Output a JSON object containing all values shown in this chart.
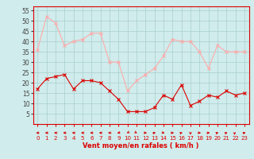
{
  "hours": [
    0,
    1,
    2,
    3,
    4,
    5,
    6,
    7,
    8,
    9,
    10,
    11,
    12,
    13,
    14,
    15,
    16,
    17,
    18,
    19,
    20,
    21,
    22,
    23
  ],
  "wind_avg": [
    17,
    22,
    23,
    24,
    17,
    21,
    21,
    20,
    16,
    12,
    6,
    6,
    6,
    8,
    14,
    12,
    19,
    9,
    11,
    14,
    13,
    16,
    14,
    15
  ],
  "wind_gust": [
    36,
    52,
    49,
    38,
    40,
    41,
    44,
    44,
    30,
    30,
    16,
    21,
    24,
    27,
    33,
    41,
    40,
    40,
    35,
    27,
    38,
    35,
    35,
    35
  ],
  "avg_color": "#dd0000",
  "gust_color": "#ffaaaa",
  "bg_color": "#d0ecec",
  "grid_color": "#aacece",
  "arrow_color": "#dd0000",
  "spine_color": "#dd0000",
  "xlabel": "Vent moyen/en rafales ( km/h )",
  "xlabel_color": "#dd0000",
  "tick_color_x": "#dd0000",
  "tick_color_y": "#444444",
  "ylim_min": 0,
  "ylim_max": 57,
  "yticks": [
    5,
    10,
    15,
    20,
    25,
    30,
    35,
    40,
    45,
    50,
    55
  ],
  "xticks": [
    0,
    1,
    2,
    3,
    4,
    5,
    6,
    7,
    8,
    9,
    10,
    11,
    12,
    13,
    14,
    15,
    16,
    17,
    18,
    19,
    20,
    21,
    22,
    23
  ],
  "arrow_angles_deg": [
    180,
    180,
    180,
    180,
    180,
    180,
    180,
    180,
    180,
    200,
    225,
    315,
    0,
    20,
    340,
    0,
    30,
    270,
    0,
    10,
    30,
    30,
    45,
    20
  ]
}
